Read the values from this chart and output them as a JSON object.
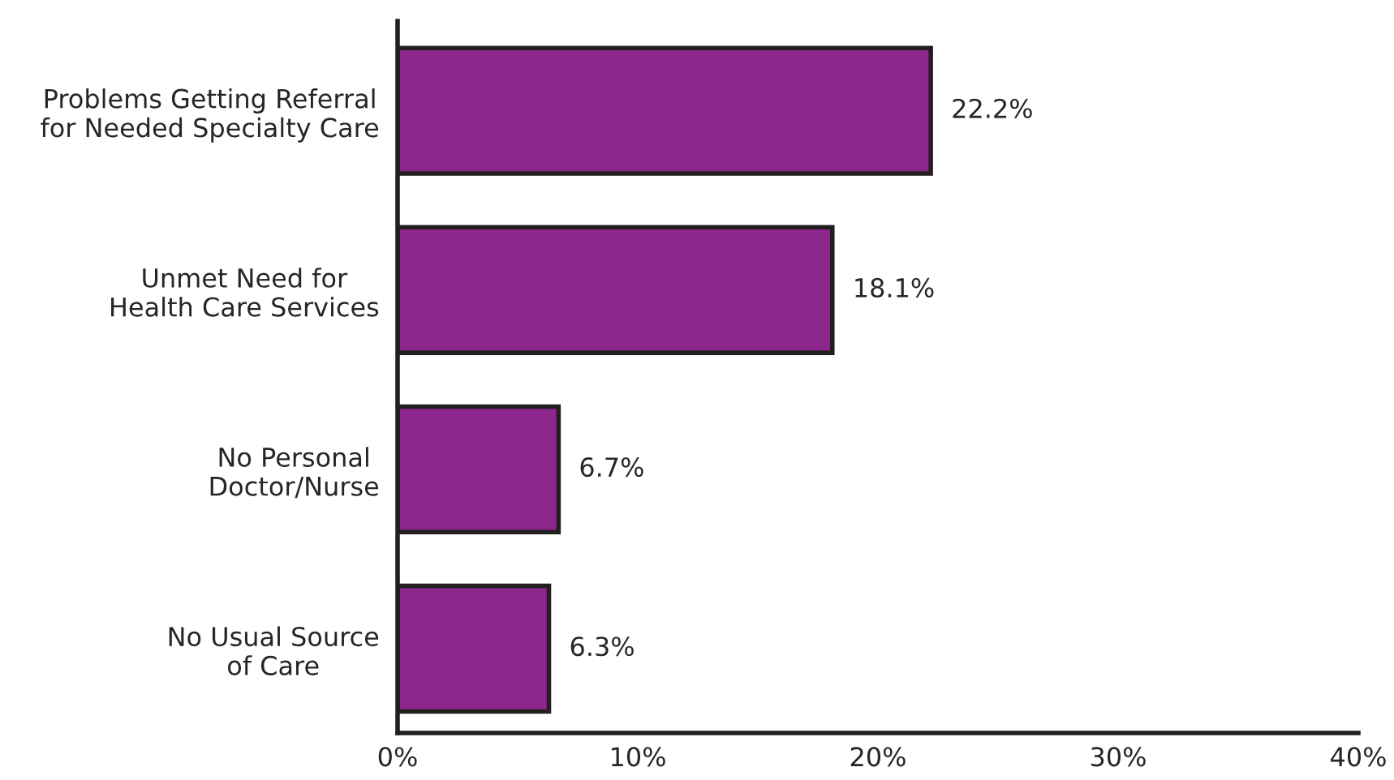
{
  "chart_data": {
    "type": "bar",
    "orientation": "horizontal",
    "categories": [
      "Problems Getting Referral\nfor Needed Specialty Care",
      "Unmet Need for\nHealth Care Services",
      "No Personal\nDoctor/Nurse",
      "No Usual Source\nof Care"
    ],
    "values": [
      22.2,
      18.1,
      6.7,
      6.3
    ],
    "value_labels": [
      "22.2%",
      "18.1%",
      "6.7%",
      "6.3%"
    ],
    "color": "#8e278d",
    "xlim": [
      0,
      40
    ],
    "xticks": [
      {
        "value": 0,
        "label": "0%"
      },
      {
        "value": 10,
        "label": "10%"
      },
      {
        "value": 20,
        "label": "20%"
      },
      {
        "value": 30,
        "label": "30%"
      },
      {
        "value": 40,
        "label": "40%"
      }
    ]
  }
}
